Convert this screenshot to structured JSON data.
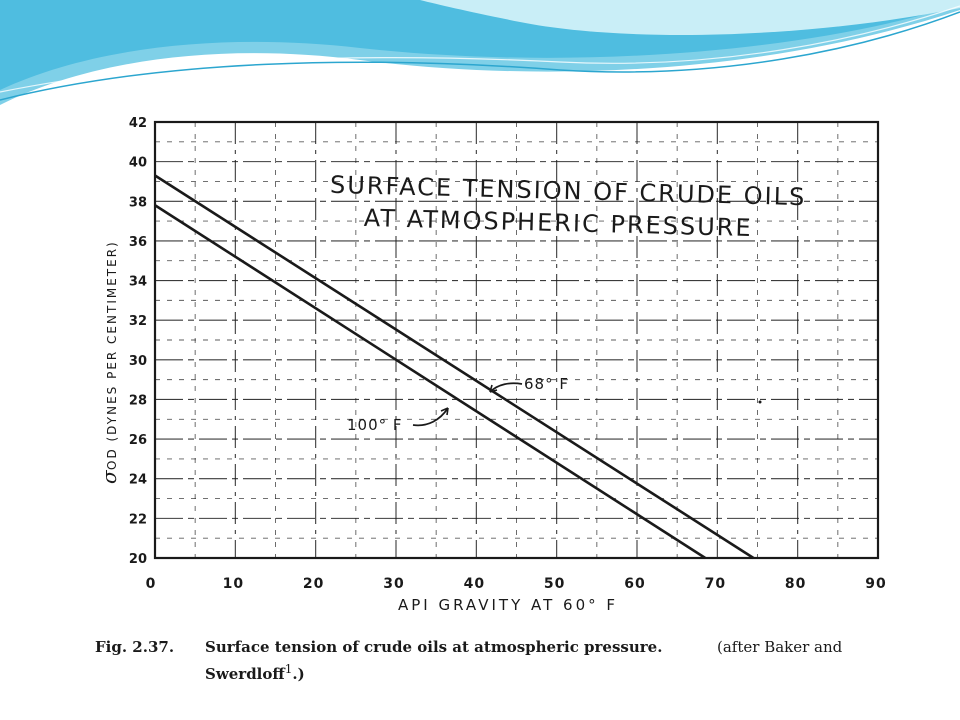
{
  "theme": {
    "accent": "#3fb2d9",
    "accent_light": "#a9e0ef",
    "ink": "#1a1a1a"
  },
  "chart_data": {
    "type": "line",
    "title": "SURFACE TENSION OF CRUDE OILS",
    "subtitle": "AT ATMOSPHERIC PRESSURE",
    "xlabel": "API GRAVITY AT 60° F",
    "ylabel_symbol": "σ",
    "ylabel": "OD (DYNES PER CENTIMETER)",
    "xlim": [
      0,
      90
    ],
    "ylim": [
      20,
      42
    ],
    "xticks": [
      "0",
      "10",
      "20",
      "30",
      "40",
      "50",
      "60",
      "70",
      "80",
      "90"
    ],
    "yticks": [
      "20",
      "22",
      "24",
      "26",
      "28",
      "30",
      "32",
      "34",
      "36",
      "38",
      "40",
      "42"
    ],
    "grid": true,
    "series": [
      {
        "name": "68° F",
        "x": [
          0,
          74.5
        ],
        "y": [
          39.3,
          20
        ]
      },
      {
        "name": "100° F",
        "x": [
          0,
          68.5
        ],
        "y": [
          37.8,
          20
        ]
      }
    ]
  },
  "caption": {
    "fig": "Fig. 2.37.",
    "line1": "Surface tension of crude oils at atmospheric pressure.",
    "after": "(after Baker and",
    "line2": "Swerdloff",
    "ref": "1",
    "close": ".)"
  }
}
